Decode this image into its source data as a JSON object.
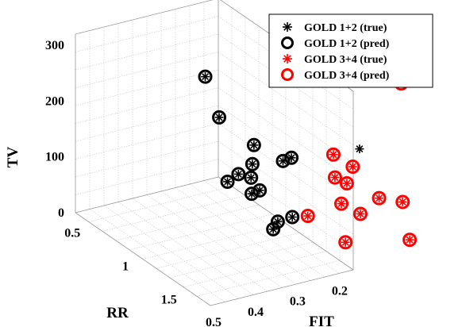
{
  "chart_data": {
    "type": "scatter",
    "title": "",
    "axes": {
      "x": {
        "label": "FIT",
        "ticks": [
          0.5,
          0.4,
          0.3,
          0.2
        ],
        "tick_labels": [
          "0.5",
          "0.4",
          "0.3",
          "0.2"
        ],
        "range": [
          0.16,
          0.5
        ]
      },
      "y": {
        "label": "RR",
        "ticks": [
          0.5,
          1,
          1.5
        ],
        "tick_labels": [
          "0.5",
          "1",
          "1.5"
        ],
        "range": [
          0.3,
          1.7
        ]
      },
      "z": {
        "label": "TV",
        "ticks": [
          0,
          100,
          200,
          300
        ],
        "tick_labels": [
          "0",
          "100",
          "200",
          "300"
        ],
        "range": [
          0,
          320
        ]
      }
    },
    "grid": true,
    "legend_position": "top-right",
    "series": [
      {
        "name": "GOLD 1+2 (true)",
        "marker": "asterisk",
        "color": "#000000",
        "points": [
          {
            "fit": 0.37,
            "rr": 1.08,
            "tv": 312
          },
          {
            "fit": 0.33,
            "rr": 1.05,
            "tv": 228
          },
          {
            "fit": 0.3,
            "rr": 1.28,
            "tv": 200
          },
          {
            "fit": 0.33,
            "rr": 1.25,
            "tv": 150
          },
          {
            "fit": 0.29,
            "rr": 1.22,
            "tv": 157
          },
          {
            "fit": 0.3,
            "rr": 1.25,
            "tv": 138
          },
          {
            "fit": 0.3,
            "rr": 1.34,
            "tv": 126
          },
          {
            "fit": 0.34,
            "rr": 1.18,
            "tv": 130
          },
          {
            "fit": 0.31,
            "rr": 1.3,
            "tv": 117
          },
          {
            "fit": 0.24,
            "rr": 1.32,
            "tv": 165
          },
          {
            "fit": 0.22,
            "rr": 1.32,
            "tv": 167
          },
          {
            "fit": 0.3,
            "rr": 1.48,
            "tv": 73
          },
          {
            "fit": 0.28,
            "rr": 1.44,
            "tv": 78
          },
          {
            "fit": 0.25,
            "rr": 1.46,
            "tv": 83
          },
          {
            "fit": 0.09,
            "rr": 1.46,
            "tv": 175
          }
        ]
      },
      {
        "name": "GOLD 1+2 (pred)",
        "marker": "circle",
        "color": "#000000",
        "points": [
          {
            "fit": 0.37,
            "rr": 1.08,
            "tv": 312
          },
          {
            "fit": 0.33,
            "rr": 1.05,
            "tv": 228
          },
          {
            "fit": 0.3,
            "rr": 1.28,
            "tv": 200
          },
          {
            "fit": 0.33,
            "rr": 1.25,
            "tv": 150
          },
          {
            "fit": 0.29,
            "rr": 1.22,
            "tv": 157
          },
          {
            "fit": 0.3,
            "rr": 1.25,
            "tv": 138
          },
          {
            "fit": 0.3,
            "rr": 1.34,
            "tv": 126
          },
          {
            "fit": 0.34,
            "rr": 1.18,
            "tv": 130
          },
          {
            "fit": 0.31,
            "rr": 1.3,
            "tv": 117
          },
          {
            "fit": 0.24,
            "rr": 1.32,
            "tv": 165
          },
          {
            "fit": 0.22,
            "rr": 1.32,
            "tv": 167
          },
          {
            "fit": 0.3,
            "rr": 1.48,
            "tv": 73
          },
          {
            "fit": 0.28,
            "rr": 1.44,
            "tv": 78
          },
          {
            "fit": 0.25,
            "rr": 1.46,
            "tv": 83
          }
        ]
      },
      {
        "name": "GOLD 3+4 (true)",
        "marker": "asterisk",
        "color": "#ff0000",
        "points": [
          {
            "fit": 0.22,
            "rr": 1.49,
            "tv": 83
          },
          {
            "fit": 0.15,
            "rr": 1.45,
            "tv": 175
          },
          {
            "fit": 0.16,
            "rr": 1.51,
            "tv": 143
          },
          {
            "fit": 0.15,
            "rr": 1.59,
            "tv": 140
          },
          {
            "fit": 0.12,
            "rr": 1.52,
            "tv": 156
          },
          {
            "fit": 0.17,
            "rr": 1.62,
            "tv": 111
          },
          {
            "fit": 0.15,
            "rr": 1.73,
            "tv": 102
          },
          {
            "fit": 0.19,
            "rr": 1.75,
            "tv": 61
          },
          {
            "fit": 0.11,
            "rr": 1.75,
            "tv": 125
          },
          {
            "fit": 0.07,
            "rr": 1.82,
            "tv": 119
          },
          {
            "fit": 0.0,
            "rr": 1.5,
            "tv": 280
          },
          {
            "fit": 0.09,
            "rr": 1.98,
            "tv": 74
          }
        ]
      },
      {
        "name": "GOLD 3+4 (pred)",
        "marker": "circle",
        "color": "#ff0000",
        "points": [
          {
            "fit": 0.22,
            "rr": 1.49,
            "tv": 83
          },
          {
            "fit": 0.15,
            "rr": 1.45,
            "tv": 175
          },
          {
            "fit": 0.16,
            "rr": 1.51,
            "tv": 143
          },
          {
            "fit": 0.15,
            "rr": 1.59,
            "tv": 140
          },
          {
            "fit": 0.12,
            "rr": 1.52,
            "tv": 156
          },
          {
            "fit": 0.17,
            "rr": 1.62,
            "tv": 111
          },
          {
            "fit": 0.15,
            "rr": 1.73,
            "tv": 102
          },
          {
            "fit": 0.19,
            "rr": 1.75,
            "tv": 61
          },
          {
            "fit": 0.11,
            "rr": 1.75,
            "tv": 125
          },
          {
            "fit": 0.07,
            "rr": 1.82,
            "tv": 119
          },
          {
            "fit": 0.0,
            "rr": 1.5,
            "tv": 280
          },
          {
            "fit": 0.09,
            "rr": 1.98,
            "tv": 74
          }
        ]
      }
    ]
  }
}
